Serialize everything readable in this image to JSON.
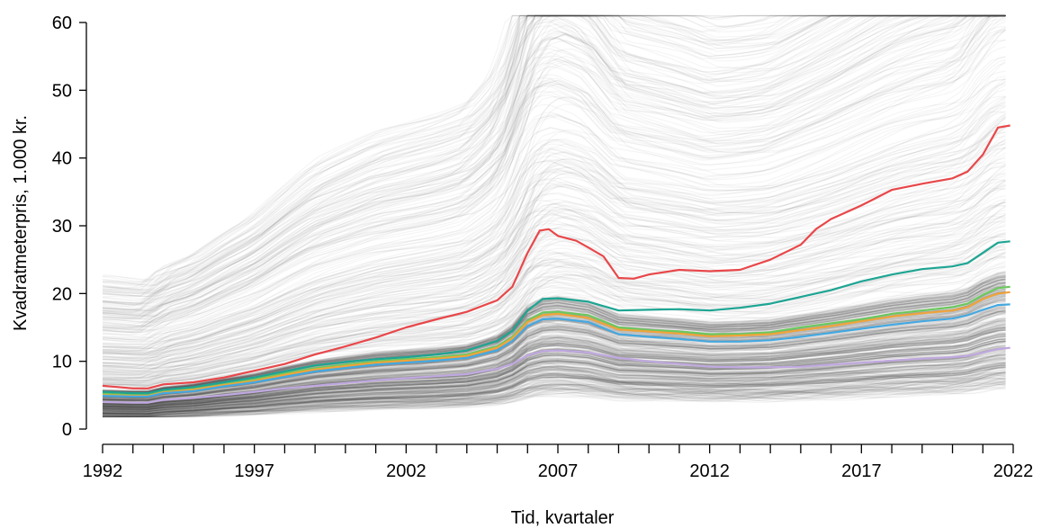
{
  "chart_data": {
    "type": "line",
    "xlabel": "Tid, kvartaler",
    "ylabel": "Kvadratmeterpris, 1.000 kr.",
    "xlim": [
      1992,
      2022
    ],
    "ylim": [
      0,
      60
    ],
    "x_ticks": [
      1992,
      1997,
      2002,
      2007,
      2012,
      2017,
      2022
    ],
    "y_ticks": [
      0,
      10,
      20,
      30,
      40,
      50,
      60
    ],
    "minor_x_ticks_per_year": true,
    "background_series": "many thin grey individual lines (low opacity) spanning roughly 2-60",
    "series": [
      {
        "color": "#e8474a",
        "points": [
          [
            1992,
            6.4
          ],
          [
            1993,
            6.0
          ],
          [
            1993.5,
            6.0
          ],
          [
            1994,
            6.6
          ],
          [
            1995,
            6.9
          ],
          [
            1996,
            7.6
          ],
          [
            1997,
            8.6
          ],
          [
            1998,
            9.6
          ],
          [
            1999,
            11.0
          ],
          [
            2000,
            12.2
          ],
          [
            2001,
            13.5
          ],
          [
            2002,
            15.0
          ],
          [
            2003,
            16.2
          ],
          [
            2004,
            17.3
          ],
          [
            2005,
            19.0
          ],
          [
            2005.5,
            21.0
          ],
          [
            2006,
            26.0
          ],
          [
            2006.4,
            29.3
          ],
          [
            2006.7,
            29.5
          ],
          [
            2007,
            28.5
          ],
          [
            2007.6,
            27.8
          ],
          [
            2008,
            26.8
          ],
          [
            2008.5,
            25.5
          ],
          [
            2009,
            22.3
          ],
          [
            2009.5,
            22.2
          ],
          [
            2010,
            22.8
          ],
          [
            2011,
            23.5
          ],
          [
            2012,
            23.3
          ],
          [
            2013,
            23.5
          ],
          [
            2014,
            25.0
          ],
          [
            2015,
            27.2
          ],
          [
            2015.5,
            29.5
          ],
          [
            2016,
            31.0
          ],
          [
            2017,
            33.0
          ],
          [
            2018,
            35.3
          ],
          [
            2019,
            36.2
          ],
          [
            2020,
            37.0
          ],
          [
            2020.5,
            38.0
          ],
          [
            2021,
            40.5
          ],
          [
            2021.5,
            44.5
          ],
          [
            2021.9,
            44.8
          ]
        ]
      },
      {
        "color": "#1ea593",
        "points": [
          [
            1992,
            5.5
          ],
          [
            1993,
            5.3
          ],
          [
            1993.5,
            5.3
          ],
          [
            1994,
            5.8
          ],
          [
            1995,
            6.2
          ],
          [
            1996,
            6.9
          ],
          [
            1997,
            7.6
          ],
          [
            1998,
            8.5
          ],
          [
            1999,
            9.4
          ],
          [
            2000,
            9.9
          ],
          [
            2001,
            10.3
          ],
          [
            2002,
            10.6
          ],
          [
            2003,
            11.0
          ],
          [
            2004,
            11.6
          ],
          [
            2005,
            13.0
          ],
          [
            2005.5,
            14.5
          ],
          [
            2006,
            17.5
          ],
          [
            2006.5,
            19.2
          ],
          [
            2007,
            19.3
          ],
          [
            2008,
            18.8
          ],
          [
            2009,
            17.5
          ],
          [
            2010,
            17.6
          ],
          [
            2011,
            17.7
          ],
          [
            2012,
            17.5
          ],
          [
            2013,
            17.9
          ],
          [
            2014,
            18.5
          ],
          [
            2015,
            19.5
          ],
          [
            2016,
            20.5
          ],
          [
            2017,
            21.8
          ],
          [
            2018,
            22.8
          ],
          [
            2019,
            23.6
          ],
          [
            2020,
            24.0
          ],
          [
            2020.5,
            24.5
          ],
          [
            2021,
            26.0
          ],
          [
            2021.5,
            27.5
          ],
          [
            2021.9,
            27.7
          ]
        ]
      },
      {
        "color": "#6cc85e",
        "points": [
          [
            1992,
            5.2
          ],
          [
            1993,
            5.0
          ],
          [
            1993.5,
            5.0
          ],
          [
            1994,
            5.5
          ],
          [
            1995,
            5.9
          ],
          [
            1996,
            6.6
          ],
          [
            1997,
            7.3
          ],
          [
            1998,
            8.2
          ],
          [
            1999,
            9.0
          ],
          [
            2000,
            9.5
          ],
          [
            2001,
            10.0
          ],
          [
            2002,
            10.3
          ],
          [
            2003,
            10.6
          ],
          [
            2004,
            11.0
          ],
          [
            2005,
            12.2
          ],
          [
            2005.5,
            13.6
          ],
          [
            2006,
            16.0
          ],
          [
            2006.5,
            17.2
          ],
          [
            2007,
            17.3
          ],
          [
            2008,
            16.8
          ],
          [
            2009,
            15.0
          ],
          [
            2010,
            14.6
          ],
          [
            2011,
            14.4
          ],
          [
            2012,
            14.0
          ],
          [
            2013,
            14.0
          ],
          [
            2014,
            14.3
          ],
          [
            2015,
            15.0
          ],
          [
            2016,
            15.6
          ],
          [
            2017,
            16.2
          ],
          [
            2018,
            17.0
          ],
          [
            2019,
            17.5
          ],
          [
            2020,
            18.0
          ],
          [
            2020.5,
            18.5
          ],
          [
            2021,
            19.8
          ],
          [
            2021.5,
            20.8
          ],
          [
            2021.9,
            21.0
          ]
        ]
      },
      {
        "color": "#f0a43a",
        "points": [
          [
            1992,
            5.0
          ],
          [
            1993,
            4.9
          ],
          [
            1993.5,
            4.9
          ],
          [
            1994,
            5.4
          ],
          [
            1995,
            5.8
          ],
          [
            1996,
            6.5
          ],
          [
            1997,
            7.1
          ],
          [
            1998,
            8.0
          ],
          [
            1999,
            8.8
          ],
          [
            2000,
            9.3
          ],
          [
            2001,
            9.8
          ],
          [
            2002,
            10.1
          ],
          [
            2003,
            10.4
          ],
          [
            2004,
            10.8
          ],
          [
            2005,
            12.0
          ],
          [
            2005.5,
            13.4
          ],
          [
            2006,
            15.8
          ],
          [
            2006.5,
            16.8
          ],
          [
            2007,
            17.0
          ],
          [
            2008,
            16.4
          ],
          [
            2009,
            14.7
          ],
          [
            2010,
            14.4
          ],
          [
            2011,
            14.1
          ],
          [
            2012,
            13.7
          ],
          [
            2013,
            13.8
          ],
          [
            2014,
            14.0
          ],
          [
            2015,
            14.6
          ],
          [
            2016,
            15.2
          ],
          [
            2017,
            15.9
          ],
          [
            2018,
            16.6
          ],
          [
            2019,
            17.1
          ],
          [
            2020,
            17.5
          ],
          [
            2020.5,
            18.0
          ],
          [
            2021,
            19.2
          ],
          [
            2021.5,
            20.0
          ],
          [
            2021.9,
            20.2
          ]
        ]
      },
      {
        "color": "#44a8e0",
        "points": [
          [
            1992,
            4.9
          ],
          [
            1993,
            4.8
          ],
          [
            1993.5,
            4.8
          ],
          [
            1994,
            5.3
          ],
          [
            1995,
            5.6
          ],
          [
            1996,
            6.3
          ],
          [
            1997,
            6.9
          ],
          [
            1998,
            7.7
          ],
          [
            1999,
            8.5
          ],
          [
            2000,
            9.0
          ],
          [
            2001,
            9.5
          ],
          [
            2002,
            9.8
          ],
          [
            2003,
            10.1
          ],
          [
            2004,
            10.5
          ],
          [
            2005,
            11.6
          ],
          [
            2005.5,
            13.0
          ],
          [
            2006,
            15.2
          ],
          [
            2006.5,
            16.2
          ],
          [
            2007,
            16.3
          ],
          [
            2008,
            15.8
          ],
          [
            2009,
            14.0
          ],
          [
            2010,
            13.6
          ],
          [
            2011,
            13.3
          ],
          [
            2012,
            12.9
          ],
          [
            2013,
            12.9
          ],
          [
            2014,
            13.1
          ],
          [
            2015,
            13.6
          ],
          [
            2016,
            14.2
          ],
          [
            2017,
            14.8
          ],
          [
            2018,
            15.4
          ],
          [
            2019,
            15.9
          ],
          [
            2020,
            16.3
          ],
          [
            2020.5,
            16.8
          ],
          [
            2021,
            17.6
          ],
          [
            2021.5,
            18.3
          ],
          [
            2021.9,
            18.4
          ]
        ]
      },
      {
        "color": "#c0a8e0",
        "points": [
          [
            1992,
            4.0
          ],
          [
            1993,
            3.9
          ],
          [
            1993.5,
            3.9
          ],
          [
            1994,
            4.3
          ],
          [
            1995,
            4.6
          ],
          [
            1996,
            5.0
          ],
          [
            1997,
            5.5
          ],
          [
            1998,
            6.0
          ],
          [
            1999,
            6.4
          ],
          [
            2000,
            6.8
          ],
          [
            2001,
            7.2
          ],
          [
            2002,
            7.5
          ],
          [
            2003,
            7.8
          ],
          [
            2004,
            8.1
          ],
          [
            2005,
            8.9
          ],
          [
            2005.5,
            9.6
          ],
          [
            2006,
            10.9
          ],
          [
            2006.5,
            11.5
          ],
          [
            2007,
            11.6
          ],
          [
            2008,
            11.3
          ],
          [
            2009,
            10.5
          ],
          [
            2010,
            10.0
          ],
          [
            2011,
            9.6
          ],
          [
            2012,
            9.2
          ],
          [
            2013,
            9.1
          ],
          [
            2014,
            9.1
          ],
          [
            2015,
            9.2
          ],
          [
            2016,
            9.5
          ],
          [
            2017,
            9.8
          ],
          [
            2018,
            10.1
          ],
          [
            2019,
            10.4
          ],
          [
            2020,
            10.6
          ],
          [
            2020.5,
            10.8
          ],
          [
            2021,
            11.3
          ],
          [
            2021.5,
            11.8
          ],
          [
            2021.9,
            12.0
          ]
        ]
      }
    ]
  }
}
